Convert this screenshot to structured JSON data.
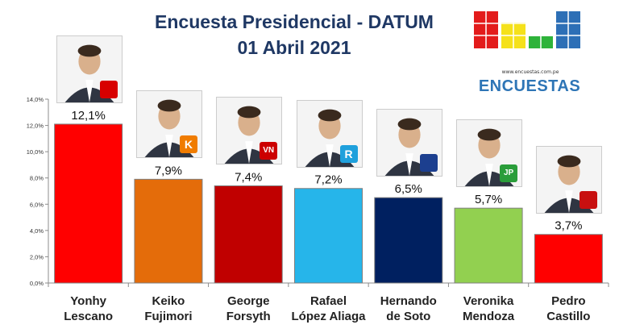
{
  "header": {
    "title": "Encuesta Presidencial - DATUM",
    "date": "01 Abril 2021"
  },
  "logo": {
    "url": "www.encuestas.com.pe",
    "word": "ENCUESTAS",
    "bar_colors": [
      "#e31b1b",
      "#f5e11a",
      "#2eb33a",
      "#2d6fb6"
    ]
  },
  "chart_data": {
    "type": "bar",
    "categories": [
      "Yonhy Lescano",
      "Keiko Fujimori",
      "George Forsyth",
      "Rafael López Aliaga",
      "Hernando de Soto",
      "Veronika Mendoza",
      "Pedro Castillo"
    ],
    "name_lines": [
      [
        "Yonhy",
        "Lescano"
      ],
      [
        "Keiko",
        "Fujimori"
      ],
      [
        "George",
        "Forsyth"
      ],
      [
        "Rafael",
        "López Aliaga"
      ],
      [
        "Hernando",
        "de Soto"
      ],
      [
        "Veronika",
        "Mendoza"
      ],
      [
        "Pedro",
        "Castillo"
      ]
    ],
    "values": [
      12.1,
      7.9,
      7.4,
      7.2,
      6.5,
      5.7,
      3.7
    ],
    "value_labels": [
      "12,1%",
      "7,9%",
      "7,4%",
      "7,2%",
      "6,5%",
      "5,7%",
      "3,7%"
    ],
    "colors": [
      "#ff0000",
      "#e46c0a",
      "#c00000",
      "#26b5ea",
      "#002060",
      "#92d050",
      "#ff0000"
    ],
    "ylim": [
      0,
      14
    ],
    "yticks": [
      "0,0%",
      "2,0%",
      "4,0%",
      "6,0%",
      "8,0%",
      "10,0%",
      "12,0%",
      "14,0%"
    ],
    "party_badges": [
      {
        "text": "",
        "color": "#d80000"
      },
      {
        "text": "K",
        "color": "#f07c00"
      },
      {
        "text": "VN",
        "color": "#cc0000"
      },
      {
        "text": "R",
        "color": "#1fa0dc"
      },
      {
        "text": "",
        "color": "#1c3f8f"
      },
      {
        "text": "JP",
        "color": "#2a9d3a"
      },
      {
        "text": "",
        "color": "#c81010"
      }
    ],
    "grid": false,
    "legend": "none"
  }
}
